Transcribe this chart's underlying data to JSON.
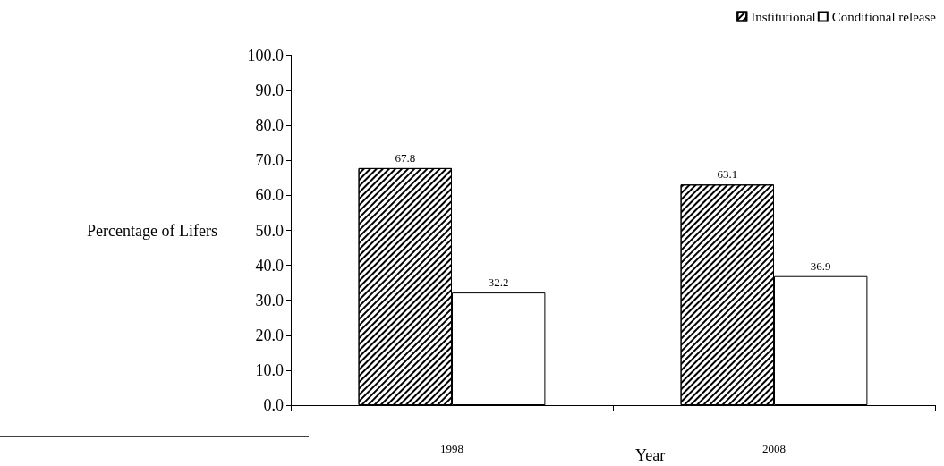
{
  "chart_data": {
    "type": "bar",
    "xlabel": "Year",
    "ylabel": "Percentage of Lifers",
    "categories": [
      "1998",
      "2008"
    ],
    "series": [
      {
        "name": "Institutional",
        "color": "#000000",
        "values": [
          67.8,
          63.1
        ]
      },
      {
        "name": "Conditional release",
        "color": "#ffffff",
        "values": [
          32.2,
          36.9
        ]
      }
    ],
    "ylim": [
      0,
      100
    ],
    "yticks": [
      {
        "value": 0,
        "label": "0.0"
      },
      {
        "value": 10,
        "label": "10.0"
      },
      {
        "value": 20,
        "label": "20.0"
      },
      {
        "value": 30,
        "label": "30.0"
      },
      {
        "value": 40,
        "label": "40.0"
      },
      {
        "value": 50,
        "label": "50.0"
      },
      {
        "value": 60,
        "label": "60.0"
      },
      {
        "value": 70,
        "label": "70.0"
      },
      {
        "value": 80,
        "label": "80.0"
      },
      {
        "value": 90,
        "label": "90.0"
      },
      {
        "value": 100,
        "label": "100.0"
      }
    ],
    "grid": false,
    "legend": "top right",
    "data_labels": true
  }
}
